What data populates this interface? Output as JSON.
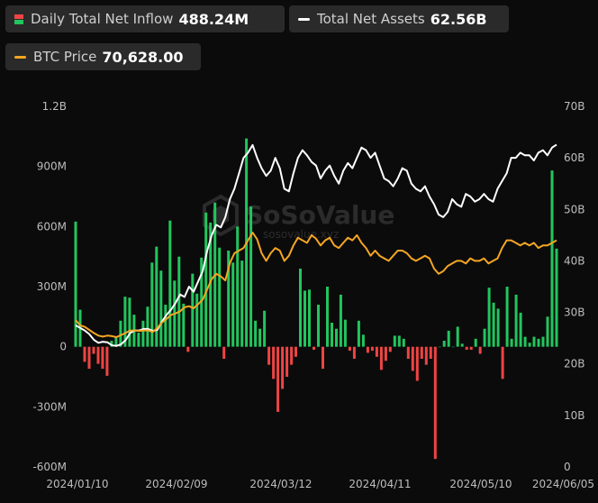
{
  "legend": {
    "inflow": {
      "label": "Daily Total Net Inflow",
      "value": "488.24M",
      "pos_color": "#22c55e",
      "neg_color": "#ef4444"
    },
    "assets": {
      "label": "Total Net Assets",
      "value": "62.56B",
      "color": "#ffffff"
    },
    "btc": {
      "label": "BTC Price",
      "value": "70,628.00",
      "color": "#f5a623"
    }
  },
  "watermark": {
    "brand": "SoSoValue",
    "url": "sosovalue.xyz"
  },
  "chart_data": {
    "type": "bar+line",
    "x_ticks": [
      "2024/01/10",
      "2024/02/09",
      "2024/03/12",
      "2024/04/11",
      "2024/05/10",
      "2024/06/05"
    ],
    "left_axis": {
      "ticks": [
        "1.2B",
        "900M",
        "600M",
        "300M",
        "0",
        "-300M",
        "-600M"
      ],
      "range": [
        -600,
        1200
      ],
      "unit": "M"
    },
    "right_axis": {
      "ticks": [
        "70B",
        "60B",
        "50B",
        "40B",
        "30B",
        "20B",
        "10B",
        "0"
      ],
      "range": [
        0,
        70
      ],
      "unit": "B"
    },
    "series": [
      {
        "name": "Daily Total Net Inflow",
        "kind": "bar",
        "values": [
          625,
          185,
          -75,
          -110,
          -35,
          -85,
          -110,
          -145,
          30,
          50,
          130,
          250,
          245,
          160,
          70,
          130,
          200,
          420,
          500,
          380,
          210,
          630,
          330,
          450,
          215,
          -25,
          365,
          265,
          445,
          670,
          620,
          720,
          495,
          -60,
          480,
          420,
          600,
          430,
          1040,
          700,
          130,
          90,
          180,
          -90,
          -160,
          -325,
          -210,
          -150,
          -90,
          -50,
          390,
          280,
          285,
          -15,
          210,
          -110,
          300,
          120,
          90,
          260,
          135,
          -20,
          -60,
          130,
          60,
          -30,
          -20,
          -50,
          -115,
          -70,
          -25,
          55,
          55,
          40,
          -60,
          -120,
          -170,
          -60,
          -90,
          -60,
          -560,
          0,
          30,
          80,
          0,
          100,
          15,
          -15,
          -15,
          40,
          -35,
          90,
          295,
          220,
          190,
          -160,
          300,
          40,
          260,
          170,
          50,
          20,
          50,
          40,
          50,
          150,
          880,
          490
        ]
      },
      {
        "name": "Total Net Assets",
        "kind": "line",
        "axis": "right",
        "values": [
          27.5,
          27,
          26.5,
          25.8,
          24.7,
          24.1,
          24.3,
          24.2,
          23.6,
          23.5,
          23.8,
          24.6,
          26,
          26.5,
          26.5,
          26.8,
          26.8,
          26.4,
          26.6,
          28.2,
          29.5,
          30.5,
          31.8,
          33.5,
          33,
          35,
          34,
          36,
          38,
          42,
          45,
          47,
          46.5,
          48.5,
          52,
          54,
          57,
          60,
          61,
          62.5,
          60,
          58,
          56.5,
          57.5,
          60,
          58,
          54,
          53.5,
          57,
          60,
          61.5,
          60.5,
          59.2,
          58.5,
          56,
          57.5,
          58.5,
          56.5,
          55,
          57.5,
          59,
          58,
          60,
          62,
          61.5,
          60,
          61,
          58.5,
          56,
          55.5,
          54.5,
          56,
          58,
          57.5,
          55,
          54,
          53.5,
          54.5,
          52.5,
          51,
          49,
          48.5,
          49.5,
          52,
          51,
          50.5,
          53,
          52.5,
          51.5,
          52,
          53,
          52,
          51.5,
          54,
          55.5,
          57,
          60,
          60,
          61,
          60.5,
          60.5,
          59.5,
          61,
          61.5,
          60.5,
          62,
          62.56
        ]
      },
      {
        "name": "BTC Price",
        "kind": "line",
        "axis": "right",
        "values": [
          28.5,
          27.5,
          27.2,
          26.6,
          26,
          25.5,
          25.3,
          25.5,
          25.4,
          25.2,
          25.6,
          26,
          26.5,
          26.5,
          26.4,
          26.5,
          26.5,
          26.2,
          27,
          28,
          28.7,
          29.5,
          29.8,
          30.2,
          31,
          31.2,
          30.8,
          31.6,
          32.5,
          34.5,
          36.5,
          37.5,
          37,
          36.2,
          39.6,
          41.5,
          42,
          42.5,
          44,
          45.5,
          44.2,
          41.5,
          40,
          41.5,
          42.5,
          42,
          40,
          41,
          43,
          44.5,
          44,
          43.5,
          45,
          44.3,
          43,
          44,
          44.5,
          43,
          42.5,
          43.5,
          44.5,
          44,
          45,
          43.5,
          42.5,
          41,
          42,
          41,
          40.5,
          40,
          41,
          42,
          42,
          41.5,
          40.5,
          40,
          40.5,
          41,
          40.5,
          38.5,
          37.5,
          38,
          39,
          39.5,
          40,
          40,
          39.5,
          40.5,
          40,
          40,
          40.5,
          39.5,
          40,
          40.5,
          42.5,
          44,
          44,
          43.5,
          43,
          43.5,
          43,
          43.5,
          42.5,
          43,
          43,
          43.5,
          44
        ]
      }
    ]
  }
}
